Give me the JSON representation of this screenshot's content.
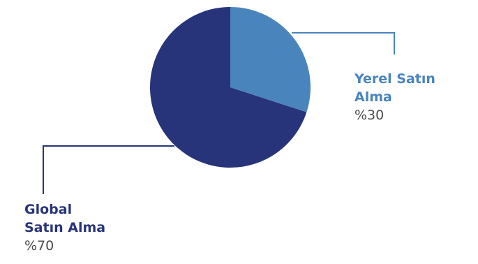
{
  "colors": {
    "yerel": "#4a84bd",
    "global": "#27347a",
    "yerel_line": "#4a84bd",
    "global_line": "#27347a",
    "value_text": "#4a4a4a"
  },
  "chart_data": {
    "type": "pie",
    "categories": [
      "Yerel Satın Alma",
      "Global Satın Alma"
    ],
    "values": [
      30,
      70
    ],
    "value_labels": [
      "%30",
      "%70"
    ],
    "legend": "none"
  },
  "labels": {
    "yerel": {
      "line1": "Yerel Satın",
      "line2": "Alma",
      "value": "%30"
    },
    "global": {
      "line1": "Global",
      "line2": "Satın Alma",
      "value": "%70"
    }
  }
}
